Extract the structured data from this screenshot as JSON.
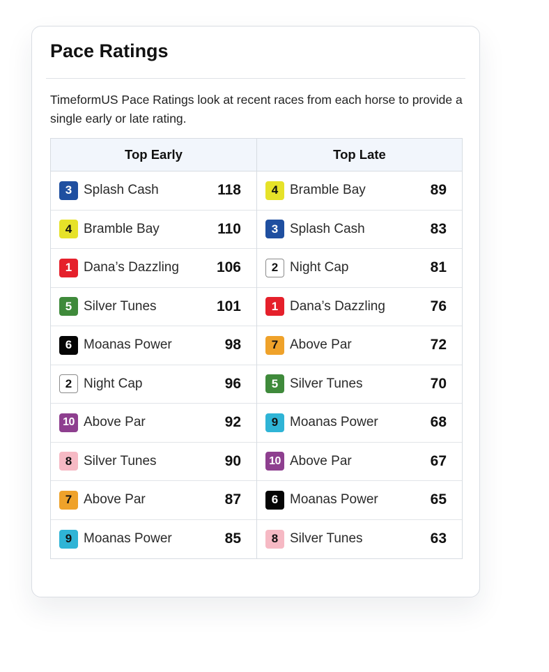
{
  "panel": {
    "title": "Pace Ratings",
    "description": "TimeformUS Pace Ratings look at recent races from each horse to provide a single early or late rating."
  },
  "badge_styles": {
    "1": {
      "bg": "#e5202b",
      "fg": "#ffffff",
      "border": "#e5202b"
    },
    "2": {
      "bg": "#ffffff",
      "fg": "#111111",
      "border": "#8a8a8a"
    },
    "3": {
      "bg": "#1f4fa0",
      "fg": "#ffffff",
      "border": "#1f4fa0"
    },
    "4": {
      "bg": "#e6e229",
      "fg": "#111111",
      "border": "#e6e229"
    },
    "5": {
      "bg": "#3f8a3b",
      "fg": "#ffffff",
      "border": "#3f8a3b"
    },
    "6": {
      "bg": "#050505",
      "fg": "#ffffff",
      "border": "#050505"
    },
    "7": {
      "bg": "#efa22a",
      "fg": "#111111",
      "border": "#efa22a"
    },
    "8": {
      "bg": "#f6b9c4",
      "fg": "#111111",
      "border": "#f6b9c4"
    },
    "9": {
      "bg": "#2fb4d6",
      "fg": "#111111",
      "border": "#2fb4d6"
    },
    "10": {
      "bg": "#8e3f8f",
      "fg": "#ffffff",
      "border": "#8e3f8f"
    }
  },
  "top_early": {
    "header": "Top Early",
    "rows": [
      {
        "number": "3",
        "name": "Splash Cash",
        "rating": "118"
      },
      {
        "number": "4",
        "name": "Bramble Bay",
        "rating": "110"
      },
      {
        "number": "1",
        "name": "Dana’s Dazzling",
        "rating": "106"
      },
      {
        "number": "5",
        "name": "Silver Tunes",
        "rating": "101"
      },
      {
        "number": "6",
        "name": "Moanas Power",
        "rating": "98"
      },
      {
        "number": "2",
        "name": "Night Cap",
        "rating": "96"
      },
      {
        "number": "10",
        "name": "Above Par",
        "rating": "92"
      },
      {
        "number": "8",
        "name": "Silver Tunes",
        "rating": "90"
      },
      {
        "number": "7",
        "name": "Above Par",
        "rating": "87"
      },
      {
        "number": "9",
        "name": "Moanas Power",
        "rating": "85"
      }
    ]
  },
  "top_late": {
    "header": "Top Late",
    "rows": [
      {
        "number": "4",
        "name": "Bramble Bay",
        "rating": "89"
      },
      {
        "number": "3",
        "name": "Splash Cash",
        "rating": "83"
      },
      {
        "number": "2",
        "name": "Night Cap",
        "rating": "81"
      },
      {
        "number": "1",
        "name": "Dana’s Dazzling",
        "rating": "76"
      },
      {
        "number": "7",
        "name": "Above Par",
        "rating": "72"
      },
      {
        "number": "5",
        "name": "Silver Tunes",
        "rating": "70"
      },
      {
        "number": "9",
        "name": "Moanas Power",
        "rating": "68"
      },
      {
        "number": "10",
        "name": "Above Par",
        "rating": "67"
      },
      {
        "number": "6",
        "name": "Moanas Power",
        "rating": "65"
      },
      {
        "number": "8",
        "name": "Silver Tunes",
        "rating": "63"
      }
    ]
  }
}
